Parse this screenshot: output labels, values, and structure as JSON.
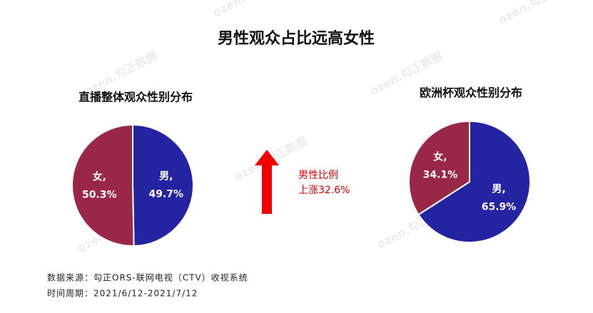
{
  "title": "男性观众占比远高女性",
  "annotation": [
    "男性比例",
    "上涨32.6%"
  ],
  "source": [
    "数据来源：勾正ORS-联网电视（CTV）收视系统",
    "时间周期：2021/6/12-2021/7/12"
  ],
  "watermark": "ozen.勾正数据",
  "chart_data": [
    {
      "type": "pie",
      "title": "直播整体观众性别分布",
      "categories": [
        "男,",
        "女,"
      ],
      "values": [
        49.7,
        50.3
      ],
      "value_labels": [
        "49.7%",
        "50.3%"
      ],
      "colors": [
        "#2424a2",
        "#9a2747"
      ]
    },
    {
      "type": "pie",
      "title": "欧洲杯观众性别分布",
      "categories": [
        "男,",
        "女,"
      ],
      "values": [
        65.9,
        34.1
      ],
      "value_labels": [
        "65.9%",
        "34.1%"
      ],
      "colors": [
        "#2424a2",
        "#9a2747"
      ]
    }
  ]
}
